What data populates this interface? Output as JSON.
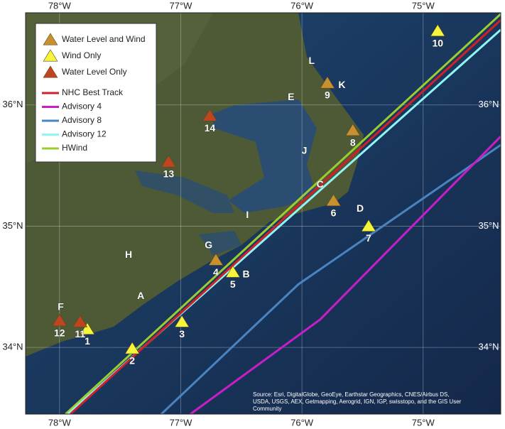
{
  "map": {
    "xlim": [
      -78.28,
      -74.36
    ],
    "ylim": [
      33.45,
      36.76
    ],
    "xticks": [
      {
        "value": -78,
        "label": "78°W"
      },
      {
        "value": -77,
        "label": "77°W"
      },
      {
        "value": -76,
        "label": "76°W"
      },
      {
        "value": -75,
        "label": "75°W"
      }
    ],
    "yticks": [
      {
        "value": 34,
        "label": "34°N"
      },
      {
        "value": 35,
        "label": "35°N"
      },
      {
        "value": 36,
        "label": "36°N"
      }
    ],
    "grid": true,
    "station_types": [
      {
        "name": "Water Level and Wind",
        "color": "#c8902e",
        "stations": [
          {
            "label": "4",
            "lon": -76.71,
            "lat": 34.72
          },
          {
            "label": "6",
            "lon": -75.74,
            "lat": 35.21
          },
          {
            "label": "8",
            "lon": -75.58,
            "lat": 35.79
          },
          {
            "label": "9",
            "lon": -75.79,
            "lat": 36.18
          }
        ]
      },
      {
        "name": "Wind Only",
        "color": "#f5f53c",
        "stations": [
          {
            "label": "1",
            "lon": -77.77,
            "lat": 34.15
          },
          {
            "label": "2",
            "lon": -77.4,
            "lat": 33.99
          },
          {
            "label": "3",
            "lon": -76.99,
            "lat": 34.21
          },
          {
            "label": "5",
            "lon": -76.57,
            "lat": 34.62
          },
          {
            "label": "7",
            "lon": -75.45,
            "lat": 35.0
          },
          {
            "label": "10",
            "lon": -74.88,
            "lat": 36.61
          }
        ]
      },
      {
        "name": "Water Level Only",
        "color": "#c0451f",
        "stations": [
          {
            "label": "11",
            "lon": -77.83,
            "lat": 34.21
          },
          {
            "label": "12",
            "lon": -78.0,
            "lat": 34.22
          },
          {
            "label": "13",
            "lon": -77.1,
            "lat": 35.53
          },
          {
            "label": "14",
            "lon": -76.76,
            "lat": 35.91
          }
        ]
      }
    ],
    "tracks": [
      {
        "name": "NHC Best Track",
        "color": "#d0202a",
        "lon": [
          -77.91,
          -74.36
        ],
        "lat": [
          33.45,
          36.7
        ]
      },
      {
        "name": "Advisory 4",
        "color": "#c81ec8",
        "lon": [
          -76.92,
          -75.85,
          -74.36
        ],
        "lat": [
          33.45,
          34.23,
          35.74
        ]
      },
      {
        "name": "Advisory 8",
        "color": "#4a84c0",
        "lon": [
          -77.16,
          -76.03,
          -74.36
        ],
        "lat": [
          33.45,
          34.52,
          35.67
        ]
      },
      {
        "name": "Advisory 12",
        "color": "#8ff5f5",
        "lon": [
          -77.93,
          -74.36
        ],
        "lat": [
          33.45,
          36.62
        ]
      },
      {
        "name": "HWind",
        "color": "#9acd32",
        "lon": [
          -77.95,
          -74.36
        ],
        "lat": [
          33.45,
          36.75
        ]
      }
    ],
    "places": [
      {
        "label": "A",
        "lon": -77.33,
        "lat": 34.42
      },
      {
        "label": "B",
        "lon": -76.46,
        "lat": 34.6
      },
      {
        "label": "C",
        "lon": -75.85,
        "lat": 35.34
      },
      {
        "label": "D",
        "lon": -75.52,
        "lat": 35.14
      },
      {
        "label": "E",
        "lon": -76.09,
        "lat": 36.06
      },
      {
        "label": "F",
        "lon": -77.99,
        "lat": 34.33
      },
      {
        "label": "G",
        "lon": -76.77,
        "lat": 34.84
      },
      {
        "label": "H",
        "lon": -77.43,
        "lat": 34.76
      },
      {
        "label": "I",
        "lon": -76.45,
        "lat": 35.09
      },
      {
        "label": "J",
        "lon": -75.98,
        "lat": 35.62
      },
      {
        "label": "K",
        "lon": -75.67,
        "lat": 36.16
      },
      {
        "label": "L",
        "lon": -75.92,
        "lat": 36.36
      }
    ],
    "source": [
      "Source: Esri, DigitalGlobe, GeoEye, Earthstar Geographics, CNES/Airbus DS,",
      "USDA, USGS, AEX, Getmapping, Aerogrid, IGN, IGP, swisstopo, and the GIS User",
      "Community"
    ]
  }
}
